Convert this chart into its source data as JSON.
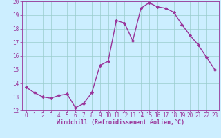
{
  "x": [
    0,
    1,
    2,
    3,
    4,
    5,
    6,
    7,
    8,
    9,
    10,
    11,
    12,
    13,
    14,
    15,
    16,
    17,
    18,
    19,
    20,
    21,
    22,
    23
  ],
  "y": [
    13.7,
    13.3,
    13.0,
    12.9,
    13.1,
    13.2,
    12.2,
    12.5,
    13.3,
    15.3,
    15.6,
    18.6,
    18.4,
    17.1,
    19.5,
    19.9,
    19.6,
    19.5,
    19.2,
    18.3,
    17.5,
    16.8,
    15.9,
    15.0
  ],
  "line_color": "#993399",
  "marker": "D",
  "marker_size": 2.2,
  "bg_color": "#cceeff",
  "grid_color": "#99cccc",
  "xlabel": "Windchill (Refroidissement éolien,°C)",
  "xlabel_color": "#993399",
  "tick_color": "#993399",
  "spine_color": "#993399",
  "xlim": [
    -0.5,
    23.5
  ],
  "ylim": [
    12,
    20
  ],
  "yticks": [
    12,
    13,
    14,
    15,
    16,
    17,
    18,
    19,
    20
  ],
  "xticks": [
    0,
    1,
    2,
    3,
    4,
    5,
    6,
    7,
    8,
    9,
    10,
    11,
    12,
    13,
    14,
    15,
    16,
    17,
    18,
    19,
    20,
    21,
    22,
    23
  ],
  "line_width": 1.0,
  "tick_fontsize": 5.5,
  "xlabel_fontsize": 6.0,
  "xlabel_fontweight": "bold"
}
